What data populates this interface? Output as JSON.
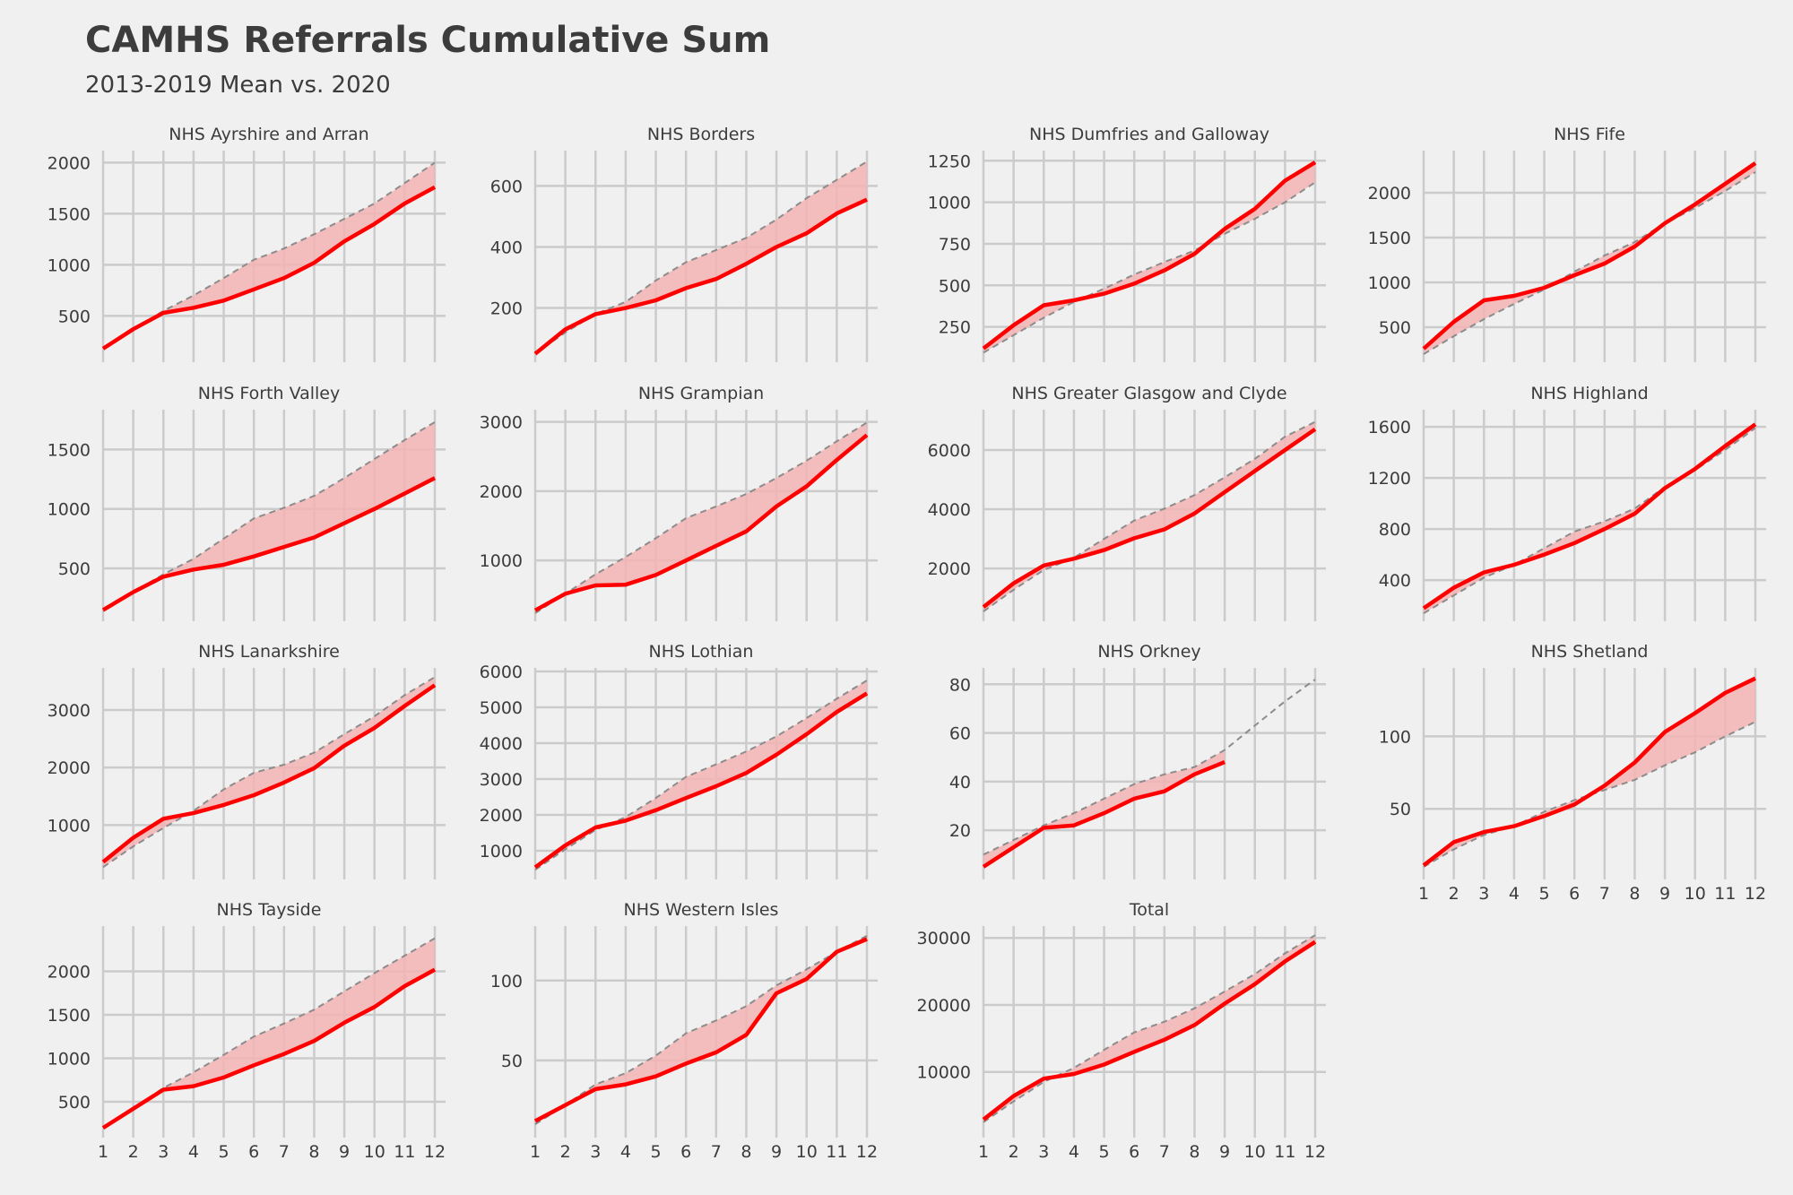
{
  "title": "CAMHS Referrals Cumulative Sum",
  "subtitle": "2013-2019 Mean vs. 2020",
  "colors": {
    "background": "#f0f0f0",
    "grid": "#cbcbcb",
    "actual": "#ff0000",
    "mean": "#8c8c8c",
    "fill": "#f4b4b4",
    "text": "#3c3c3c"
  },
  "chart_data": [
    {
      "type": "line",
      "title": "NHS Ayrshire and Arran",
      "x": [
        1,
        2,
        3,
        4,
        5,
        6,
        7,
        8,
        9,
        10,
        11,
        12
      ],
      "ylim": [
        100,
        2100
      ],
      "yticks": [
        500,
        1000,
        1500,
        2000
      ],
      "series": [
        {
          "values": [
            180,
            370,
            550,
            700,
            870,
            1050,
            1160,
            1300,
            1450,
            1600,
            1800,
            2000
          ]
        },
        {
          "values": [
            180,
            370,
            530,
            580,
            650,
            760,
            870,
            1020,
            1230,
            1400,
            1600,
            1760
          ]
        }
      ]
    },
    {
      "type": "line",
      "title": "NHS Borders",
      "x": [
        1,
        2,
        3,
        4,
        5,
        6,
        7,
        8,
        9,
        10,
        11,
        12
      ],
      "ylim": [
        40,
        710
      ],
      "yticks": [
        200,
        400,
        600
      ],
      "series": [
        {
          "values": [
            50,
            120,
            180,
            220,
            290,
            350,
            390,
            430,
            490,
            560,
            620,
            680
          ]
        },
        {
          "values": [
            50,
            130,
            180,
            200,
            225,
            265,
            295,
            345,
            400,
            445,
            510,
            555
          ]
        }
      ]
    },
    {
      "type": "line",
      "title": "NHS Dumfries and Galloway",
      "x": [
        1,
        2,
        3,
        4,
        5,
        6,
        7,
        8,
        9,
        10,
        11,
        12
      ],
      "ylim": [
        70,
        1300
      ],
      "yticks": [
        250,
        500,
        750,
        1000,
        1250
      ],
      "series": [
        {
          "values": [
            95,
            200,
            305,
            400,
            480,
            565,
            640,
            710,
            810,
            900,
            1000,
            1120
          ]
        },
        {
          "values": [
            120,
            260,
            380,
            410,
            450,
            510,
            590,
            690,
            840,
            960,
            1130,
            1240
          ]
        }
      ]
    },
    {
      "type": "line",
      "title": "NHS Fife",
      "x": [
        1,
        2,
        3,
        4,
        5,
        6,
        7,
        8,
        9,
        10,
        11,
        12
      ],
      "ylim": [
        170,
        2450
      ],
      "yticks": [
        500,
        1000,
        1500,
        2000
      ],
      "series": [
        {
          "values": [
            200,
            400,
            590,
            760,
            920,
            1120,
            1300,
            1450,
            1660,
            1830,
            2020,
            2230
          ]
        },
        {
          "values": [
            260,
            560,
            800,
            850,
            940,
            1080,
            1210,
            1400,
            1660,
            1870,
            2100,
            2330
          ]
        }
      ]
    },
    {
      "type": "line",
      "title": "NHS Forth Valley",
      "x": [
        1,
        2,
        3,
        4,
        5,
        6,
        7,
        8,
        9,
        10,
        11,
        12
      ],
      "ylim": [
        100,
        1820
      ],
      "yticks": [
        500,
        1000,
        1500
      ],
      "series": [
        {
          "values": [
            140,
            300,
            450,
            580,
            750,
            920,
            1010,
            1110,
            1260,
            1420,
            1580,
            1730
          ]
        },
        {
          "values": [
            150,
            300,
            430,
            490,
            530,
            600,
            680,
            760,
            880,
            1000,
            1130,
            1260
          ]
        }
      ]
    },
    {
      "type": "line",
      "title": "NHS Grampian",
      "x": [
        1,
        2,
        3,
        4,
        5,
        6,
        7,
        8,
        9,
        10,
        11,
        12
      ],
      "ylim": [
        200,
        3150
      ],
      "yticks": [
        1000,
        2000,
        3000
      ],
      "series": [
        {
          "values": [
            240,
            520,
            800,
            1050,
            1320,
            1610,
            1780,
            1960,
            2190,
            2440,
            2720,
            2990
          ]
        },
        {
          "values": [
            280,
            520,
            640,
            650,
            790,
            1000,
            1210,
            1420,
            1780,
            2070,
            2450,
            2810
          ]
        }
      ]
    },
    {
      "type": "line",
      "title": "NHS Greater Glasgow and Clyde",
      "x": [
        1,
        2,
        3,
        4,
        5,
        6,
        7,
        8,
        9,
        10,
        11,
        12
      ],
      "ylim": [
        400,
        7300
      ],
      "yticks": [
        2000,
        4000,
        6000
      ],
      "series": [
        {
          "values": [
            550,
            1280,
            1950,
            2360,
            3000,
            3620,
            4020,
            4480,
            5080,
            5700,
            6450,
            6950
          ]
        },
        {
          "values": [
            700,
            1500,
            2100,
            2330,
            2620,
            3020,
            3320,
            3860,
            4580,
            5290,
            6000,
            6700
          ]
        }
      ]
    },
    {
      "type": "line",
      "title": "NHS Highland",
      "x": [
        1,
        2,
        3,
        4,
        5,
        6,
        7,
        8,
        9,
        10,
        11,
        12
      ],
      "ylim": [
        120,
        1720
      ],
      "yticks": [
        400,
        800,
        1200,
        1600
      ],
      "series": [
        {
          "values": [
            140,
            280,
            420,
            520,
            650,
            780,
            860,
            960,
            1130,
            1260,
            1420,
            1590
          ]
        },
        {
          "values": [
            180,
            340,
            460,
            520,
            600,
            690,
            800,
            920,
            1120,
            1270,
            1450,
            1620
          ]
        }
      ]
    },
    {
      "type": "line",
      "title": "NHS Lanarkshire",
      "x": [
        1,
        2,
        3,
        4,
        5,
        6,
        7,
        8,
        9,
        10,
        11,
        12
      ],
      "ylim": [
        150,
        3700
      ],
      "yticks": [
        1000,
        2000,
        3000
      ],
      "series": [
        {
          "values": [
            270,
            630,
            950,
            1250,
            1620,
            1910,
            2050,
            2260,
            2580,
            2890,
            3260,
            3570
          ]
        },
        {
          "values": [
            360,
            780,
            1110,
            1210,
            1350,
            1520,
            1740,
            1990,
            2380,
            2690,
            3070,
            3430
          ]
        }
      ]
    },
    {
      "type": "line",
      "title": "NHS Lothian",
      "x": [
        1,
        2,
        3,
        4,
        5,
        6,
        7,
        8,
        9,
        10,
        11,
        12
      ],
      "ylim": [
        350,
        6050
      ],
      "yticks": [
        1000,
        2000,
        3000,
        4000,
        5000,
        6000
      ],
      "series": [
        {
          "values": [
            470,
            1040,
            1580,
            1940,
            2470,
            3060,
            3410,
            3770,
            4190,
            4700,
            5240,
            5750
          ]
        },
        {
          "values": [
            540,
            1150,
            1650,
            1840,
            2130,
            2470,
            2800,
            3170,
            3680,
            4250,
            4870,
            5390
          ]
        }
      ]
    },
    {
      "type": "line",
      "title": "NHS Orkney",
      "x": [
        1,
        2,
        3,
        4,
        5,
        6,
        7,
        8,
        9,
        10,
        11,
        12
      ],
      "ylim": [
        2,
        86
      ],
      "yticks": [
        20,
        40,
        60,
        80
      ],
      "series": [
        {
          "values": [
            10,
            16,
            22,
            27,
            33,
            39,
            43,
            46,
            53,
            63,
            73,
            82
          ]
        },
        {
          "values": [
            5,
            13,
            21,
            22,
            27,
            33,
            36,
            43,
            48,
            null,
            null,
            null
          ]
        }
      ]
    },
    {
      "type": "line",
      "title": "NHS Shetland",
      "x": [
        1,
        2,
        3,
        4,
        5,
        6,
        7,
        8,
        9,
        10,
        11,
        12
      ],
      "ylim": [
        5,
        146
      ],
      "yticks": [
        50,
        100
      ],
      "series": [
        {
          "values": [
            10,
            22,
            32,
            38,
            48,
            56,
            63,
            70,
            80,
            89,
            100,
            110
          ]
        },
        {
          "values": [
            11,
            27,
            34,
            38,
            45,
            53,
            66,
            82,
            103,
            116,
            130,
            140
          ]
        }
      ]
    },
    {
      "type": "line",
      "title": "NHS Tayside",
      "x": [
        1,
        2,
        3,
        4,
        5,
        6,
        7,
        8,
        9,
        10,
        11,
        12
      ],
      "ylim": [
        150,
        2500
      ],
      "yticks": [
        500,
        1000,
        1500,
        2000
      ],
      "series": [
        {
          "values": [
            200,
            420,
            660,
            840,
            1040,
            1250,
            1400,
            1560,
            1770,
            1980,
            2180,
            2380
          ]
        },
        {
          "values": [
            200,
            420,
            640,
            680,
            780,
            920,
            1050,
            1200,
            1410,
            1590,
            1830,
            2020
          ]
        }
      ]
    },
    {
      "type": "line",
      "title": "NHS Western Isles",
      "x": [
        1,
        2,
        3,
        4,
        5,
        6,
        7,
        8,
        9,
        10,
        11,
        12
      ],
      "ylim": [
        5,
        133
      ],
      "yticks": [
        50,
        100
      ],
      "series": [
        {
          "values": [
            10,
            22,
            35,
            42,
            53,
            67,
            75,
            84,
            97,
            107,
            118,
            128
          ]
        },
        {
          "values": [
            12,
            22,
            32,
            35,
            40,
            48,
            55,
            66,
            92,
            101,
            118,
            126
          ]
        }
      ]
    },
    {
      "type": "line",
      "title": "Total",
      "x": [
        1,
        2,
        3,
        4,
        5,
        6,
        7,
        8,
        9,
        10,
        11,
        12
      ],
      "ylim": [
        1000,
        31500
      ],
      "yticks": [
        10000,
        20000,
        30000
      ],
      "series": [
        {
          "values": [
            2500,
            5600,
            8500,
            10600,
            13300,
            15900,
            17500,
            19500,
            22000,
            24600,
            27700,
            30400
          ]
        },
        {
          "values": [
            2900,
            6400,
            9000,
            9700,
            11100,
            13000,
            14800,
            17000,
            20200,
            23100,
            26500,
            29400
          ]
        }
      ]
    }
  ]
}
